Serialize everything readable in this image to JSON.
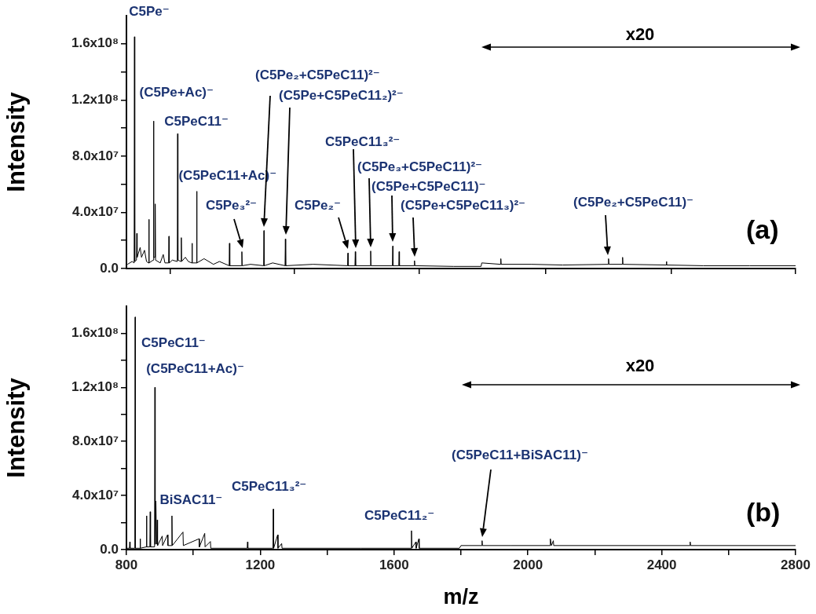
{
  "chart_data": [
    {
      "type": "line",
      "ylabel": "Intensity",
      "marker": "none",
      "tick_labels": "y",
      "xlim": [
        800,
        2800
      ],
      "xticks": [
        {
          "value": 930,
          "label": null
        },
        {
          "value": 1302,
          "label": null
        },
        {
          "value": 1676,
          "label": null
        },
        {
          "value": 2052,
          "label": null
        },
        {
          "value": 2428,
          "label": null
        },
        {
          "value": 2800,
          "label": null
        }
      ],
      "ylim": [
        0,
        180000000
      ],
      "yticks": [
        {
          "value": 0,
          "label": "0.0"
        },
        {
          "value": 20000000,
          "label": null
        },
        {
          "value": 40000000,
          "label": "4.0x10⁷"
        },
        {
          "value": 60000000,
          "label": null
        },
        {
          "value": 80000000,
          "label": "8.0x10⁷"
        },
        {
          "value": 100000000,
          "label": null
        },
        {
          "value": 120000000,
          "label": "1.2x10⁸"
        },
        {
          "value": 140000000,
          "label": null
        },
        {
          "value": 160000000,
          "label": "1.6x10⁸"
        }
      ],
      "series": [
        {
          "color": "#000000",
          "x": [
            803,
            817,
            823,
            824,
            825,
            830,
            831,
            832,
            841,
            845,
            854,
            860,
            866,
            867,
            868,
            880,
            881,
            882,
            885,
            886,
            887,
            901,
            910,
            915,
            926,
            927,
            928,
            937,
            952,
            953,
            954,
            963,
            964,
            965,
            976,
            985,
            995,
            996,
            997,
            1009,
            1010,
            1011,
            1032,
            1060,
            1078,
            1107,
            1108,
            1109,
            1144,
            1145,
            1146,
            1171,
            1210,
            1211,
            1212,
            1237,
            1274,
            1275,
            1276,
            1358,
            1461,
            1462,
            1463,
            1483,
            1484,
            1485,
            1529,
            1530,
            1531,
            1595,
            1596,
            1597,
            1614,
            1615,
            1616,
            1660,
            1661,
            1662,
            1778,
            1860,
            1862,
            1918,
            1919,
            1920,
            2011,
            2104,
            2240,
            2241,
            2242,
            2282,
            2283,
            2284,
            2413,
            2414,
            2415,
            2524,
            2663,
            2800
          ],
          "values": [
            3000000,
            5000000,
            4000000,
            165000000,
            5000000,
            6000000,
            25000000,
            8000000,
            15000000,
            8000000,
            13000000,
            5000000,
            4000000,
            35000000,
            4000000,
            6000000,
            105000000,
            8000000,
            8000000,
            46000000,
            6000000,
            4000000,
            10000000,
            4000000,
            4000000,
            23000000,
            4000000,
            6000000,
            5000000,
            96000000,
            6000000,
            5000000,
            22000000,
            5000000,
            8000000,
            5000000,
            4000000,
            18000000,
            4000000,
            4000000,
            55000000,
            4000000,
            7000000,
            3000000,
            5000000,
            2000000,
            18000000,
            2000000,
            2000000,
            12000000,
            2000000,
            3000000,
            2000000,
            27000000,
            2000000,
            4000000,
            2000000,
            21000000,
            2000000,
            3000000,
            2000000,
            11000000,
            2000000,
            2000000,
            12000000,
            2000000,
            2000000,
            12500000,
            2000000,
            2000000,
            16000000,
            2000000,
            2000000,
            12000000,
            2000000,
            2000000,
            5600000,
            2000000,
            1500000,
            1500000,
            4000000,
            3000000,
            7000000,
            3000000,
            3000000,
            2500000,
            3000000,
            7000000,
            3000000,
            3000000,
            8000000,
            3000000,
            2500000,
            5000000,
            2500000,
            2000000,
            2000000,
            2000000
          ]
        }
      ],
      "annotations": [
        {
          "text": "C5Pe⁻",
          "x": 824,
          "y": 165000000
        },
        {
          "text": "(C5Pe+Ac)⁻",
          "x": 881,
          "y": 105000000
        },
        {
          "text": "C5PeC11⁻",
          "x": 953,
          "y": 96000000
        },
        {
          "text": "(C5PeC11+Ac)⁻",
          "x": 1010,
          "y": 55000000
        },
        "C5Pe₃²⁻",
        "(C5Pe₂+C5PeC11)²⁻",
        "(C5Pe+C5PeC11₂)²⁻",
        "C5Pe₂⁻",
        "C5PeC11₃²⁻",
        "(C5Pe₃+C5PeC11)²⁻",
        "(C5Pe+C5PeC11)⁻",
        "(C5Pe+C5PeC11₃)²⁻",
        "(C5Pe₂+C5PeC11)⁻",
        "x20",
        "(a)"
      ]
    },
    {
      "type": "line",
      "ylabel": "Intensity",
      "xlabel": "m/z",
      "marker": "none",
      "xlim": [
        800,
        2800
      ],
      "xticks": [
        800,
        {
          "value": 1000,
          "label": null
        },
        1200,
        {
          "value": 1400,
          "label": null
        },
        1600,
        {
          "value": 1800,
          "label": null
        },
        2000,
        {
          "value": 2200,
          "label": null
        },
        2400,
        {
          "value": 2600,
          "label": null
        },
        2800
      ],
      "ylim": [
        0,
        180000000
      ],
      "yticks": [
        {
          "value": 0,
          "label": "0.0"
        },
        {
          "value": 20000000,
          "label": null
        },
        {
          "value": 40000000,
          "label": "4.0x10⁷"
        },
        {
          "value": 60000000,
          "label": null
        },
        {
          "value": 80000000,
          "label": "8.0x10⁷"
        },
        {
          "value": 100000000,
          "label": null
        },
        {
          "value": 120000000,
          "label": "1.2x10⁸"
        },
        {
          "value": 140000000,
          "label": null
        },
        {
          "value": 160000000,
          "label": "1.6x10⁸"
        }
      ],
      "series": [
        {
          "color": "#000000",
          "x": [
            800,
            809,
            810,
            811,
            825,
            826,
            827,
            840,
            841,
            842,
            859,
            860,
            861,
            870,
            871,
            872,
            884,
            885,
            886,
            888,
            890,
            892,
            893,
            907,
            908,
            923,
            924,
            935,
            936,
            937,
            969,
            970,
            1017,
            1018,
            1034,
            1035,
            1051,
            1052,
            1161,
            1162,
            1163,
            1238,
            1239,
            1240,
            1252,
            1253,
            1264,
            1265,
            1500,
            1651,
            1652,
            1653,
            1665,
            1666,
            1674,
            1675,
            1795,
            1800,
            1862,
            1863,
            1864,
            1950,
            2066,
            2067,
            2070,
            2076,
            2077,
            2300,
            2484,
            2485,
            2486,
            2800
          ],
          "values": [
            1000000,
            1000000,
            5700000,
            1000000,
            1000000,
            172000000,
            1000000,
            1000000,
            8000000,
            1000000,
            2000000,
            25000000,
            2000000,
            2000000,
            28000000,
            2000000,
            2000000,
            120000000,
            4000000,
            36000000,
            4000000,
            22000000,
            3000000,
            10000000,
            3000000,
            11000000,
            3000000,
            3000000,
            25000000,
            3000000,
            13000000,
            3000000,
            8000000,
            2000000,
            12000000,
            2000000,
            6000000,
            1000000,
            1000000,
            5700000,
            1000000,
            1000000,
            30000000,
            1000000,
            11000000,
            1000000,
            4500000,
            1000000,
            1000000,
            1000000,
            14000000,
            1000000,
            5700000,
            1000000,
            8000000,
            1000000,
            1000000,
            3000000,
            3000000,
            6600000,
            3000000,
            3000000,
            3000000,
            8000000,
            3000000,
            6600000,
            3000000,
            3000000,
            3000000,
            5700000,
            3000000,
            3000000
          ]
        }
      ],
      "annotations": [
        {
          "text": "C5PeC11⁻",
          "x": 826,
          "y": 172000000
        },
        {
          "text": "(C5PeC11+Ac)⁻",
          "x": 885,
          "y": 120000000
        },
        {
          "text": "BiSAC11⁻",
          "x": 888,
          "y": 36000000
        },
        {
          "text": "C5PeC11₃²⁻",
          "x": 1239,
          "y": 30000000
        },
        {
          "text": "C5PeC11₂⁻",
          "x": 1652,
          "y": 14000000
        },
        "(C5PeC11+BiSAC11)⁻",
        "x20",
        "(b)"
      ]
    }
  ]
}
